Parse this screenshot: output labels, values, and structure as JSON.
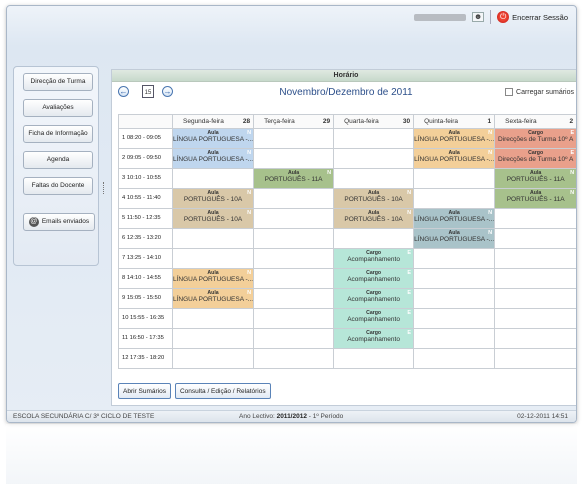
{
  "topbar": {
    "logout_label": "Encerrar Sessão"
  },
  "sidebar": {
    "items": [
      {
        "label": "Direcção de Turma",
        "name": "sidebar-item-direccao-turma"
      },
      {
        "label": "Avaliações",
        "name": "sidebar-item-avaliacoes"
      },
      {
        "label": "Ficha de Informação",
        "name": "sidebar-item-ficha-informacao"
      },
      {
        "label": "Agenda",
        "name": "sidebar-item-agenda"
      },
      {
        "label": "Faltas do Docente",
        "name": "sidebar-item-faltas-docente"
      }
    ],
    "emails_label": "Emails enviados"
  },
  "main": {
    "title": "Horário",
    "month_label": "Novembro/Dezembro de 2011",
    "calendar_day": "15",
    "load_summaries_label": "Carregar sumários",
    "days": [
      {
        "name": "Segunda-feira",
        "num": "28"
      },
      {
        "name": "Terça-feira",
        "num": "29"
      },
      {
        "name": "Quarta-feira",
        "num": "30"
      },
      {
        "name": "Quinta-feira",
        "num": "1"
      },
      {
        "name": "Sexta-feira",
        "num": "2"
      }
    ],
    "slots": [
      {
        "n": "1",
        "time": "08:20  -  09:05"
      },
      {
        "n": "2",
        "time": "09:05  -  09:50"
      },
      {
        "n": "3",
        "time": "10:10  -  10:55"
      },
      {
        "n": "4",
        "time": "10:55  -  11:40"
      },
      {
        "n": "5",
        "time": "11:50  -  12:35"
      },
      {
        "n": "6",
        "time": "12:35  -  13:20"
      },
      {
        "n": "7",
        "time": "13:25  -  14:10"
      },
      {
        "n": "8",
        "time": "14:10  -  14:55"
      },
      {
        "n": "9",
        "time": "15:05  -  15:50"
      },
      {
        "n": "10",
        "time": "15:55  -  16:35"
      },
      {
        "n": "11",
        "time": "16:50  -  17:35"
      },
      {
        "n": "12",
        "time": "17:35  -  18:20"
      }
    ],
    "events": [
      [
        {
          "t": "Aula",
          "s": "LÍNGUA PORTUGUESA -...",
          "f": "N",
          "c": "aula-blue"
        },
        {
          "t": "Aula",
          "s": "LÍNGUA PORTUGUESA -...",
          "f": "N",
          "c": "aula-teal"
        },
        {
          "t": "Cargo",
          "s": "Direcções de Turma 10º A",
          "f": "E",
          "c": "cargo-red"
        },
        {
          "t": "Cargo",
          "s": "Acompanhamento",
          "f": "E",
          "c": "cargo-aqua"
        },
        {
          "t": "Cargo",
          "s": "Acompanhamento",
          "f": "E",
          "c": "cargo-aqua"
        }
      ],
      [
        {
          "t": "Aula",
          "s": "PORTUGUÊS - 11A",
          "f": "N",
          "c": "aula-green"
        },
        {
          "t": "Aula",
          "s": "LÍNGUA PORTUGUESA -...",
          "f": "N",
          "c": "aula-orange"
        }
      ]
    ],
    "cells": {
      "0_0": {
        "t": "Aula",
        "s": "LÍNGUA PORTUGUESA -...",
        "f": "N",
        "c": "aula-blue"
      },
      "0_1": {
        "t": "Aula",
        "s": "LÍNGUA PORTUGUESA -...",
        "f": "N",
        "c": "aula-teal"
      },
      "0_3": {
        "t": "Aula",
        "s": "LÍNGUA PORTUGUESA -...",
        "f": "N",
        "c": "aula-orange"
      },
      "0_4": {
        "t": "Cargo",
        "s": "Direcções de Turma 10º A",
        "f": "E",
        "c": "cargo-red"
      },
      "1_1": {
        "t": "Aula",
        "s": "PORTUGUÊS - 11A",
        "f": "N",
        "c": "aula-green"
      },
      "1_2": {
        "t": "Aula",
        "s": "PORTUGUÊS - 11A",
        "f": "N",
        "c": "aula-green"
      },
      "1_4": {
        "t": "Aula",
        "s": "PORTUGUÊS - 11A",
        "f": "N",
        "c": "aula-green"
      },
      "3_0": {
        "t": "Aula",
        "s": "PORTUGUÊS - 10A",
        "f": "N",
        "c": "aula-tan"
      },
      "3_2": {
        "t": "Aula",
        "s": "PORTUGUÊS - 10A",
        "f": "N",
        "c": "aula-tan"
      },
      "3_4": {
        "t": "Aula",
        "s": "PORTUGUÊS - 11A",
        "f": "N",
        "c": "aula-green"
      },
      "4_0": {
        "t": "Aula",
        "s": "PORTUGUÊS - 10A",
        "f": "N",
        "c": "aula-tan"
      },
      "4_2": {
        "t": "Aula",
        "s": "PORTUGUÊS - 10A",
        "f": "N",
        "c": "aula-tan"
      },
      "4_3": {
        "t": "Aula",
        "s": "LÍNGUA PORTUGUESA -...",
        "f": "N",
        "c": "aula-teal"
      },
      "5_3": {
        "t": "Aula",
        "s": "LÍNGUA PORTUGUESA -...",
        "f": "N",
        "c": "aula-teal"
      },
      "6_2": {
        "t": "Cargo",
        "s": "Acompanhamento",
        "f": "E",
        "c": "cargo-aqua"
      },
      "7_0": {
        "t": "Aula",
        "s": "LÍNGUA PORTUGUESA -...",
        "f": "N",
        "c": "aula-orange"
      },
      "7_2": {
        "t": "Cargo",
        "s": "Acompanhamento",
        "f": "E",
        "c": "cargo-aqua"
      },
      "8_0": {
        "t": "Aula",
        "s": "LÍNGUA PORTUGUESA -...",
        "f": "N",
        "c": "aula-orange"
      },
      "8_2": {
        "t": "Cargo",
        "s": "Acompanhamento",
        "f": "E",
        "c": "cargo-aqua"
      },
      "9_2": {
        "t": "Cargo",
        "s": "Acompanhamento",
        "f": "E",
        "c": "cargo-aqua"
      },
      "10_2": {
        "t": "Cargo",
        "s": "Acompanhamento",
        "f": "E",
        "c": "cargo-aqua"
      },
      "1_3": {
        "t": "Aula",
        "s": "LÍNGUA PORTUGUESA -...",
        "f": "N",
        "c": "aula-orange"
      },
      "1_5": {
        "t": "Cargo",
        "s": "Direcções de Turma 10º A",
        "f": "E",
        "c": "cargo-red"
      }
    },
    "buttons": {
      "open_summaries": "Abrir Sumários",
      "query": "Consulta / Edição / Relatórios"
    }
  },
  "status": {
    "school": "ESCOLA SECUNDÁRIA C/ 3º CICLO DE TESTE",
    "year_prefix": "Ano Lectivo: ",
    "year_value": "2011/2012",
    "year_suffix": " - 1º Período",
    "datetime": "02-12-2011 14:51"
  }
}
